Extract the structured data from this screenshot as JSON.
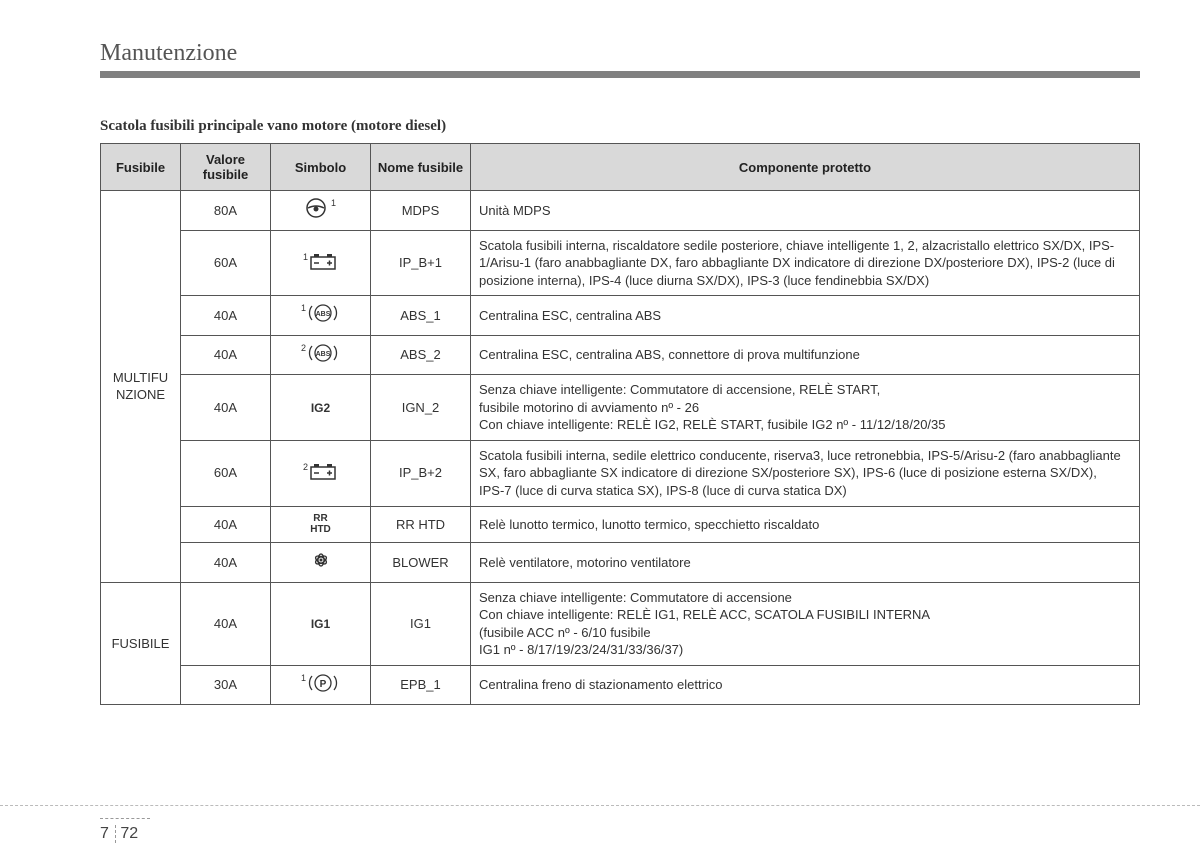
{
  "chapter_title": "Manutenzione",
  "table_title": "Scatola fusibili principale vano motore (motore diesel)",
  "headers": {
    "fusibile": "Fusibile",
    "valore": "Valore fusibile",
    "simbolo": "Simbolo",
    "nome": "Nome fusibile",
    "componente": "Componente protetto"
  },
  "groups": [
    {
      "label": "MULTIFU NZIONE",
      "rows": [
        {
          "valore": "80A",
          "simbolo": "steering",
          "sup": "1",
          "nome": "MDPS",
          "desc": "Unità MDPS"
        },
        {
          "valore": "60A",
          "simbolo": "battery",
          "sup": "1",
          "nome": "IP_B+1",
          "desc": "Scatola fusibili interna, riscaldatore sedile posteriore, chiave intelligente 1, 2, alzacristallo elettrico SX/DX, IPS-1/Arisu-1 (faro anabbagliante DX, faro abbagliante DX indicatore di direzione DX/posteriore DX), IPS-2 (luce di posizione interna), IPS-4 (luce diurna SX/DX), IPS-3 (luce fendinebbia SX/DX)"
        },
        {
          "valore": "40A",
          "simbolo": "abs",
          "sup": "1",
          "nome": "ABS_1",
          "desc": "Centralina ESC, centralina ABS"
        },
        {
          "valore": "40A",
          "simbolo": "abs",
          "sup": "2",
          "nome": "ABS_2",
          "desc": "Centralina ESC, centralina ABS, connettore di prova multifunzione"
        },
        {
          "valore": "40A",
          "simbolo": "text",
          "text": "IG2",
          "nome": "IGN_2",
          "desc": "Senza chiave intelligente: Commutatore di accensione, RELÈ START,\nfusibile motorino di avviamento nº - 26\nCon chiave intelligente: RELÈ IG2, RELÈ START, fusibile IG2 nº - 11/12/18/20/35"
        },
        {
          "valore": "60A",
          "simbolo": "battery",
          "sup": "2",
          "nome": "IP_B+2",
          "desc": "Scatola fusibili interna, sedile elettrico conducente, riserva3, luce retronebbia, IPS-5/Arisu-2 (faro anabbagliante SX, faro abbagliante SX indicatore di direzione SX/posteriore SX), IPS-6 (luce di posizione esterna SX/DX),\nIPS-7 (luce di curva statica SX), IPS-8 (luce di curva statica DX)"
        },
        {
          "valore": "40A",
          "simbolo": "text2",
          "text": "RR\nHTD",
          "nome": "RR HTD",
          "desc": "Relè lunotto termico, lunotto termico, specchietto riscaldato"
        },
        {
          "valore": "40A",
          "simbolo": "fan",
          "nome": "BLOWER",
          "desc": "Relè ventilatore, motorino ventilatore"
        }
      ]
    },
    {
      "label": "FUSIBILE",
      "rows": [
        {
          "valore": "40A",
          "simbolo": "text",
          "text": "IG1",
          "nome": "IG1",
          "desc": "Senza chiave intelligente: Commutatore di accensione\nCon chiave intelligente: RELÈ IG1, RELÈ ACC, SCATOLA FUSIBILI INTERNA\n                              (fusibile ACC nº - 6/10 fusibile\n                              IG1 nº - 8/17/19/23/24/31/33/36/37)"
        },
        {
          "valore": "30A",
          "simbolo": "parking",
          "sup": "1",
          "nome": "EPB_1",
          "desc": "Centralina freno di stazionamento elettrico"
        }
      ]
    }
  ],
  "footer": {
    "section": "7",
    "page": "72"
  }
}
